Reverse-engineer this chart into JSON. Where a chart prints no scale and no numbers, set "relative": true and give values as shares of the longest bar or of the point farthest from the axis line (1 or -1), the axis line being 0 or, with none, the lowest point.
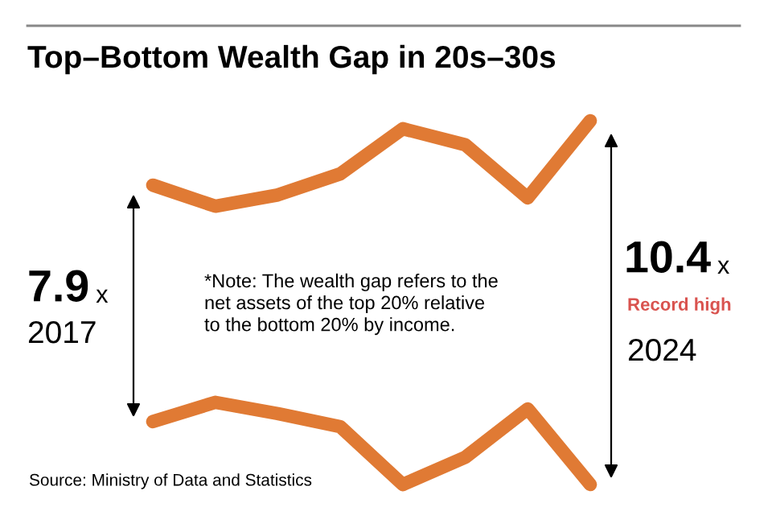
{
  "chart_data": {
    "type": "line",
    "title": "Top–Bottom Wealth Gap in 20s–30s",
    "relative": true,
    "categories": [
      null,
      null,
      null,
      null,
      null,
      null,
      null,
      null
    ],
    "series": [
      {
        "color": "#e07a34",
        "values": [
          0.823,
          0.765,
          0.796,
          0.854,
          0.978,
          0.934,
          0.788,
          1
        ]
      },
      {
        "color": "#e07a34",
        "values": [
          0.173,
          0.226,
          0.195,
          0.159,
          0,
          0.075,
          0.208,
          0
        ]
      }
    ],
    "annotations": [
      "7.9",
      "x",
      "2017",
      "10.4",
      "x",
      "Record high",
      "2024",
      "*Note: The wealth gap refers to the\nnet assets of the top 20% relative\nto the bottom 20% by income.",
      "Source: Ministry of Data and Statistics"
    ],
    "legend": false
  }
}
